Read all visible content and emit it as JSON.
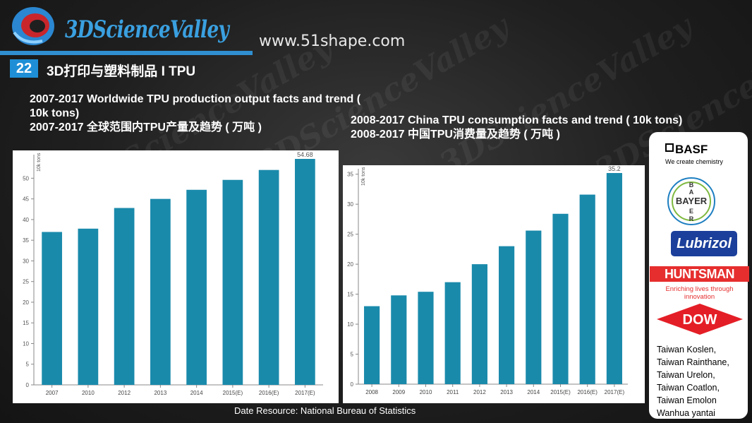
{
  "header": {
    "logo_text": "3DScienceValley",
    "website": "www.51shape.com",
    "slide_number": "22",
    "slide_title": "3D打印与塑料制品 I TPU"
  },
  "chart_titles": {
    "left": "2007-2017 Worldwide TPU production output facts and trend ( 10k tons)\n2007-2017 全球范围内TPU产量及趋势 ( 万吨 )",
    "right": "2008-2017 China TPU consumption facts and trend ( 10k tons)\n2008-2017 中国TPU消费量及趋势 ( 万吨 )"
  },
  "chart_data": [
    {
      "type": "bar",
      "title": "2007-2017 Worldwide TPU production output facts and trend ( 10k tons)",
      "ylabel": "10k tons",
      "categories": [
        "2007",
        "2010",
        "2012",
        "2013",
        "2014",
        "2015(E)",
        "2016(E)",
        "2017(E)"
      ],
      "values": [
        37,
        37.8,
        42.8,
        45,
        47.2,
        49.6,
        52,
        54.68
      ],
      "top_label": "54.68",
      "ylim": [
        0,
        54.68
      ],
      "yticks": [
        0,
        5,
        10,
        15,
        20,
        25,
        30,
        35,
        40,
        45,
        50
      ],
      "bar_color": "#1a8aab",
      "grid": false
    },
    {
      "type": "bar",
      "title": "2008-2017 China TPU consumption facts and trend ( 10k tons)",
      "ylabel": "10k tons",
      "categories": [
        "2008",
        "2009",
        "2010",
        "2011",
        "2012",
        "2013",
        "2014",
        "2015(E)",
        "2016(E)",
        "2017(E)"
      ],
      "values": [
        13,
        14.8,
        15.4,
        17,
        20,
        23,
        25.6,
        28.4,
        31.6,
        35.2
      ],
      "top_label": "35.2",
      "ylim": [
        0,
        35.2
      ],
      "yticks": [
        0,
        5,
        10,
        15,
        20,
        25,
        30,
        35
      ],
      "bar_color": "#1a8aab",
      "grid": false
    }
  ],
  "source": "Date Resource: National Bureau of Statistics",
  "companies": {
    "basf": "BASF",
    "basf_tagline": "We create chemistry",
    "bayer": "BAYER",
    "lubrizol": "Lubrizol",
    "huntsman": "HUNTSMAN",
    "huntsman_tagline": "Enriching lives through innovation",
    "dow": "DOW",
    "others": [
      "Taiwan Koslen,",
      "Taiwan Rainthane,",
      "Taiwan Urelon,",
      "Taiwan Coatlon,",
      "Taiwan Emolon",
      "Wanhua yantai"
    ]
  }
}
